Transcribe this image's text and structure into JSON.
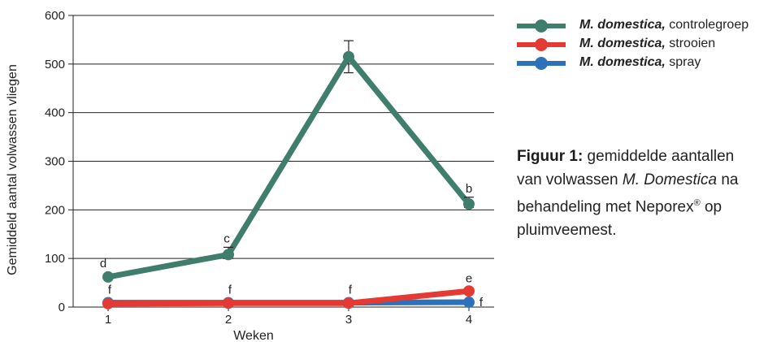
{
  "chart_data": {
    "type": "line",
    "xlabel": "Weken",
    "ylabel": "Gemiddeld aantal volwassen vliegen",
    "x": [
      1,
      2,
      3,
      4
    ],
    "x_ticks": [
      "1",
      "2",
      "3",
      "4"
    ],
    "ylim": [
      0,
      600
    ],
    "y_ticks": [
      "0",
      "100",
      "200",
      "300",
      "400",
      "500",
      "600"
    ],
    "y_tick_values": [
      0,
      100,
      200,
      300,
      400,
      500,
      600
    ],
    "grid": true,
    "legend_position": "top-right",
    "series": [
      {
        "name_italic": "M. domestica,",
        "name_suffix": "controlegroep",
        "color": "#3f7d6c",
        "values": [
          62,
          108,
          515,
          212
        ],
        "error_high": [
          null,
          123,
          548,
          226
        ],
        "error_low": [
          null,
          100,
          482,
          205
        ],
        "labels": [
          "d",
          "c",
          "",
          "b"
        ]
      },
      {
        "name_italic": "M. domestica,",
        "name_suffix": "strooien",
        "color": "#e53a33",
        "values": [
          7,
          8,
          8,
          33
        ],
        "labels": [
          "",
          "",
          "",
          "e"
        ]
      },
      {
        "name_italic": "M. domestica,",
        "name_suffix": "spray",
        "color": "#2d72b8",
        "values": [
          9,
          9,
          9,
          10
        ],
        "labels": [
          "f",
          "f",
          "f",
          "f"
        ]
      }
    ]
  },
  "caption": {
    "figure_label": "Figuur 1:",
    "text_before": " gemiddelde aantallen van volwassen ",
    "italic": "M. Domestica",
    "text_after": " na behandeling met Neporex",
    "registered": "®",
    "text_end": " op pluimveemest."
  }
}
